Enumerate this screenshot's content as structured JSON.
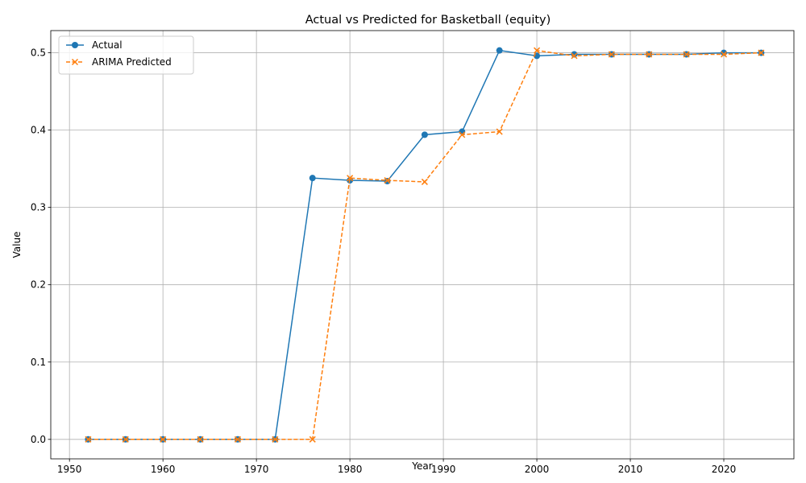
{
  "chart_data": {
    "type": "line",
    "title": "Actual vs Predicted for Basketball (equity)",
    "xlabel": "Year",
    "ylabel": "Value",
    "xlim": [
      1948,
      2027.5
    ],
    "ylim": [
      -0.0252,
      0.5287
    ],
    "xticks": [
      1950,
      1960,
      1970,
      1980,
      1990,
      2000,
      2010,
      2020
    ],
    "yticks": [
      0.0,
      0.1,
      0.2,
      0.3,
      0.4,
      0.5
    ],
    "ytick_labels": [
      "0.0",
      "0.1",
      "0.2",
      "0.3",
      "0.4",
      "0.5"
    ],
    "grid": true,
    "legend_position": "top-left",
    "x": [
      1952,
      1956,
      1960,
      1964,
      1968,
      1972,
      1976,
      1980,
      1984,
      1988,
      1992,
      1996,
      2000,
      2004,
      2008,
      2012,
      2016,
      2020,
      2024
    ],
    "series": [
      {
        "name": "Actual",
        "color": "#1f77b4",
        "line_style": "solid",
        "marker": "circle",
        "values": [
          0,
          0,
          0,
          0,
          0,
          0,
          0.338,
          0.335,
          0.334,
          0.394,
          0.398,
          0.503,
          0.496,
          0.498,
          0.498,
          0.498,
          0.498,
          0.5,
          0.5
        ]
      },
      {
        "name": "ARIMA Predicted",
        "color": "#ff7f0e",
        "line_style": "dashed",
        "marker": "x",
        "values": [
          0,
          0,
          0,
          0,
          0,
          0,
          0,
          0.338,
          0.335,
          0.333,
          0.394,
          0.398,
          0.503,
          0.496,
          0.498,
          0.498,
          0.498,
          0.498,
          0.5
        ]
      }
    ]
  }
}
